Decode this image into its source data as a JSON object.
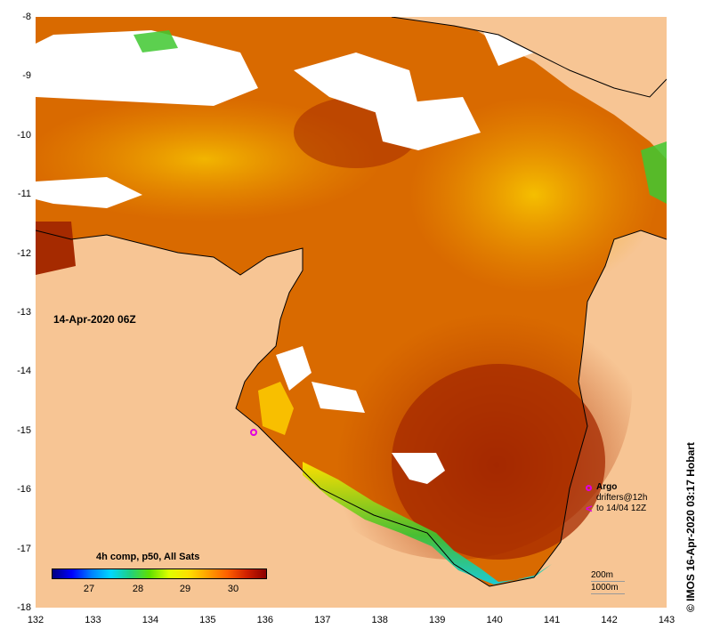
{
  "map": {
    "date_label": "14-Apr-2020 06Z",
    "lon_ticks": [
      "132",
      "133",
      "134",
      "135",
      "136",
      "137",
      "138",
      "139",
      "140",
      "141",
      "142",
      "143"
    ],
    "lat_ticks": [
      "-8",
      "-9",
      "-10",
      "-11",
      "-12",
      "-13",
      "-14",
      "-15",
      "-16",
      "-17",
      "-18"
    ],
    "colors": {
      "land": "#f7c594",
      "cloud": "#ffffff",
      "sst_hot": "#a52a00",
      "sst_warm": "#d96a00",
      "sst_mid": "#f0a000",
      "sst_cool": "#ffe200",
      "coast_green": "#30c030",
      "coast_cyan": "#10d0e0",
      "argo": "#e000e0"
    }
  },
  "colorbar": {
    "title": "4h comp, p50, All Sats",
    "labels": [
      "27",
      "28",
      "29",
      "30"
    ]
  },
  "legend": {
    "argo_label": "Argo",
    "drifters_line1": "drifters@12h",
    "drifters_line2": "to 14/04 12Z",
    "drifter_symbol": "<",
    "depth_200": "200m",
    "depth_1000": "1000m"
  },
  "credit": "© IMOS 16-Apr-2020 03:17 Hobart"
}
